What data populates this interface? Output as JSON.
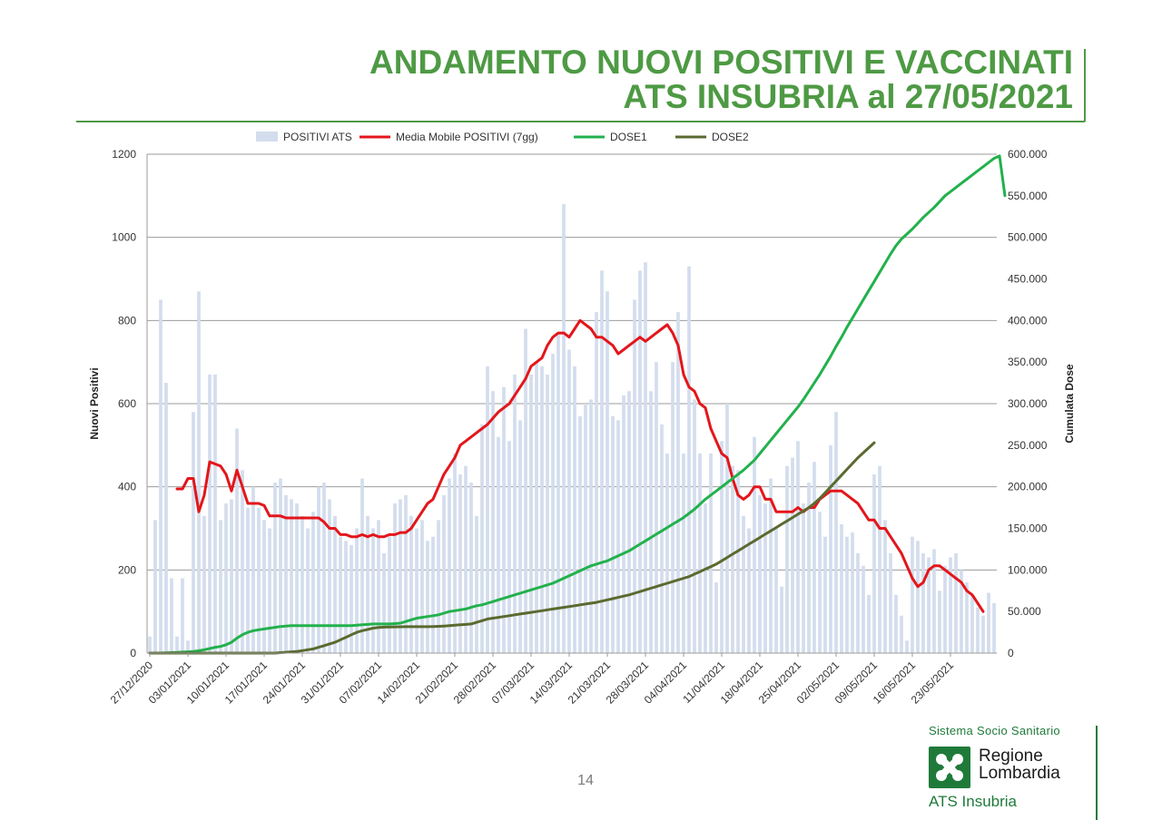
{
  "title": {
    "line1": "ANDAMENTO NUOVI POSITIVI E VACCINATI",
    "line2": "ATS INSUBRIA al 27/05/2021"
  },
  "page_number": "14",
  "logo": {
    "system": "Sistema Socio Sanitario",
    "region_line1": "Regione",
    "region_line2": "Lombardia",
    "agency": "ATS Insubria"
  },
  "colors": {
    "title": "#4e9a44",
    "bars": "#d3dded",
    "media_mobile": "#e3161b",
    "dose1": "#22b14c",
    "dose2": "#5a6a2f",
    "grid": "#9b9b9b",
    "logo_green": "#1f7a3a"
  },
  "chart_data": {
    "type": "bar",
    "ylabel": "Nuovi Positivi",
    "y2label": "Cumulata Dose",
    "ylim": [
      0,
      1200
    ],
    "y2lim": [
      0,
      600000
    ],
    "yticks": [
      "0",
      "200",
      "400",
      "600",
      "800",
      "1000",
      "1200"
    ],
    "y2ticks": [
      "0",
      "50.000",
      "100.000",
      "150.000",
      "200.000",
      "250.000",
      "300.000",
      "350.000",
      "400.000",
      "450.000",
      "500.000",
      "550.000",
      "600.000"
    ],
    "legend_position": "top",
    "grid": true,
    "x_start": "27/12/2020",
    "x_end": "27/05/2021",
    "xticks": [
      "27/12/2020",
      "03/01/2021",
      "10/01/2021",
      "17/01/2021",
      "24/01/2021",
      "31/01/2021",
      "07/02/2021",
      "14/02/2021",
      "21/02/2021",
      "28/02/2021",
      "07/03/2021",
      "14/03/2021",
      "21/03/2021",
      "28/03/2021",
      "04/04/2021",
      "11/04/2021",
      "18/04/2021",
      "25/04/2021",
      "02/05/2021",
      "09/05/2021",
      "16/05/2021",
      "23/05/2021"
    ],
    "series": [
      {
        "name": "POSITIVI ATS",
        "type": "bar",
        "axis": "left",
        "values": [
          40,
          320,
          850,
          650,
          180,
          40,
          180,
          30,
          580,
          870,
          330,
          670,
          670,
          320,
          360,
          370,
          540,
          440,
          350,
          400,
          350,
          320,
          300,
          410,
          420,
          380,
          370,
          360,
          330,
          300,
          340,
          400,
          410,
          370,
          330,
          280,
          270,
          260,
          300,
          420,
          330,
          300,
          320,
          240,
          280,
          360,
          370,
          380,
          330,
          300,
          320,
          270,
          280,
          320,
          380,
          420,
          480,
          430,
          450,
          410,
          330,
          550,
          690,
          630,
          520,
          640,
          510,
          670,
          560,
          780,
          670,
          700,
          690,
          670,
          720,
          770,
          1080,
          730,
          690,
          570,
          600,
          610,
          820,
          920,
          870,
          570,
          560,
          620,
          630,
          850,
          920,
          940,
          630,
          700,
          550,
          480,
          700,
          820,
          480,
          930,
          610,
          480,
          360,
          480,
          170,
          510,
          600,
          450,
          440,
          330,
          300,
          520,
          380,
          360,
          420,
          300,
          160,
          450,
          470,
          510,
          360,
          410,
          460,
          340,
          280,
          500,
          580,
          310,
          280,
          290,
          240,
          210,
          140,
          430,
          450,
          320,
          240,
          140,
          90,
          30,
          280,
          270,
          240,
          230,
          250,
          150,
          210,
          230,
          240,
          200,
          170,
          140,
          110,
          90,
          145,
          120
        ]
      },
      {
        "name": "Media Mobile POSITIVI (7gg)",
        "type": "line",
        "axis": "left",
        "values": [
          null,
          null,
          null,
          null,
          null,
          395,
          395,
          420,
          420,
          340,
          380,
          460,
          455,
          450,
          430,
          390,
          440,
          400,
          360,
          360,
          360,
          355,
          330,
          330,
          330,
          325,
          325,
          325,
          325,
          325,
          325,
          325,
          315,
          300,
          300,
          285,
          285,
          280,
          280,
          285,
          280,
          285,
          280,
          280,
          285,
          285,
          290,
          290,
          300,
          320,
          340,
          360,
          370,
          400,
          430,
          450,
          470,
          500,
          510,
          520,
          530,
          540,
          550,
          565,
          580,
          590,
          600,
          620,
          640,
          660,
          690,
          700,
          710,
          740,
          760,
          770,
          770,
          760,
          780,
          800,
          790,
          780,
          760,
          760,
          750,
          740,
          720,
          730,
          740,
          750,
          760,
          750,
          760,
          770,
          780,
          790,
          770,
          740,
          670,
          640,
          630,
          600,
          590,
          540,
          510,
          480,
          470,
          420,
          380,
          370,
          380,
          400,
          400,
          370,
          370,
          340,
          340,
          340,
          340,
          350,
          340,
          350,
          350,
          370,
          380,
          390,
          390,
          390,
          380,
          370,
          360,
          340,
          320,
          320,
          300,
          300,
          280,
          260,
          240,
          210,
          180,
          160,
          170,
          200,
          210,
          210,
          200,
          190,
          180,
          170,
          150,
          140,
          120,
          100
        ]
      },
      {
        "name": "DOSE1",
        "type": "line",
        "axis": "right",
        "values": [
          0,
          0,
          0,
          200,
          500,
          800,
          1200,
          1500,
          2000,
          3000,
          4000,
          5500,
          7000,
          8000,
          10000,
          13000,
          18000,
          22000,
          25000,
          27000,
          28000,
          29000,
          30000,
          31000,
          32000,
          32500,
          33000,
          33000,
          33000,
          33000,
          33000,
          33000,
          33000,
          33000,
          33000,
          33000,
          33000,
          33000,
          33500,
          34000,
          34500,
          35000,
          35000,
          35000,
          35000,
          35500,
          36000,
          38000,
          40000,
          42000,
          43000,
          44000,
          45000,
          46000,
          48000,
          50000,
          51000,
          52000,
          53000,
          55000,
          57000,
          58000,
          60000,
          62000,
          64000,
          66000,
          68000,
          70000,
          72000,
          74000,
          76000,
          78000,
          80000,
          82000,
          84000,
          87000,
          90000,
          93000,
          96000,
          99000,
          102000,
          105000,
          107000,
          109000,
          111000,
          114000,
          117000,
          120000,
          123000,
          127000,
          131000,
          135000,
          139000,
          143000,
          147000,
          151000,
          155000,
          159000,
          163000,
          168000,
          173000,
          179000,
          185000,
          190000,
          195000,
          200000,
          205000,
          210000,
          215000,
          220000,
          226000,
          232000,
          240000,
          248000,
          256000,
          264000,
          272000,
          280000,
          288000,
          296000,
          305000,
          315000,
          325000,
          335000,
          346000,
          357000,
          369000,
          380000,
          392000,
          403000,
          414000,
          425000,
          436000,
          447000,
          458000,
          469000,
          480000,
          490000,
          498000,
          504000,
          510000,
          517000,
          524000,
          530000,
          536000,
          543000,
          550000,
          555000,
          560000,
          565000,
          570000,
          575000,
          580000,
          585000,
          590000,
          595000,
          598000,
          550000
        ]
      },
      {
        "name": "DOSE2",
        "type": "line",
        "axis": "right",
        "values": [
          0,
          0,
          0,
          0,
          0,
          0,
          0,
          0,
          0,
          0,
          0,
          0,
          0,
          0,
          0,
          0,
          0,
          0,
          0,
          0,
          0,
          0,
          0,
          0,
          500,
          1000,
          1500,
          2000,
          3000,
          4000,
          5000,
          7000,
          9000,
          11000,
          13000,
          16000,
          19000,
          22000,
          25000,
          27000,
          28500,
          30000,
          30800,
          31200,
          31400,
          31500,
          31600,
          31700,
          31700,
          31700,
          31700,
          31800,
          32000,
          32200,
          32500,
          33000,
          33500,
          34000,
          34500,
          35000,
          37000,
          39000,
          41000,
          42000,
          43000,
          44000,
          45000,
          46000,
          47000,
          48000,
          49000,
          50000,
          51000,
          52000,
          53000,
          54000,
          55000,
          56000,
          57000,
          58000,
          59000,
          60000,
          61000,
          62500,
          64000,
          65500,
          67000,
          68500,
          70000,
          72000,
          74000,
          76000,
          78000,
          80000,
          82000,
          84000,
          86000,
          88000,
          90000,
          92000,
          95000,
          98000,
          101000,
          104000,
          107000,
          111000,
          115000,
          119000,
          123000,
          127000,
          131000,
          135000,
          139000,
          143000,
          147000,
          151000,
          155000,
          159000,
          163000,
          167000,
          171000,
          175000,
          180000,
          186000,
          193000,
          200000,
          207000,
          214000,
          221000,
          228000,
          235000,
          241000,
          247000,
          253000
        ]
      }
    ]
  }
}
